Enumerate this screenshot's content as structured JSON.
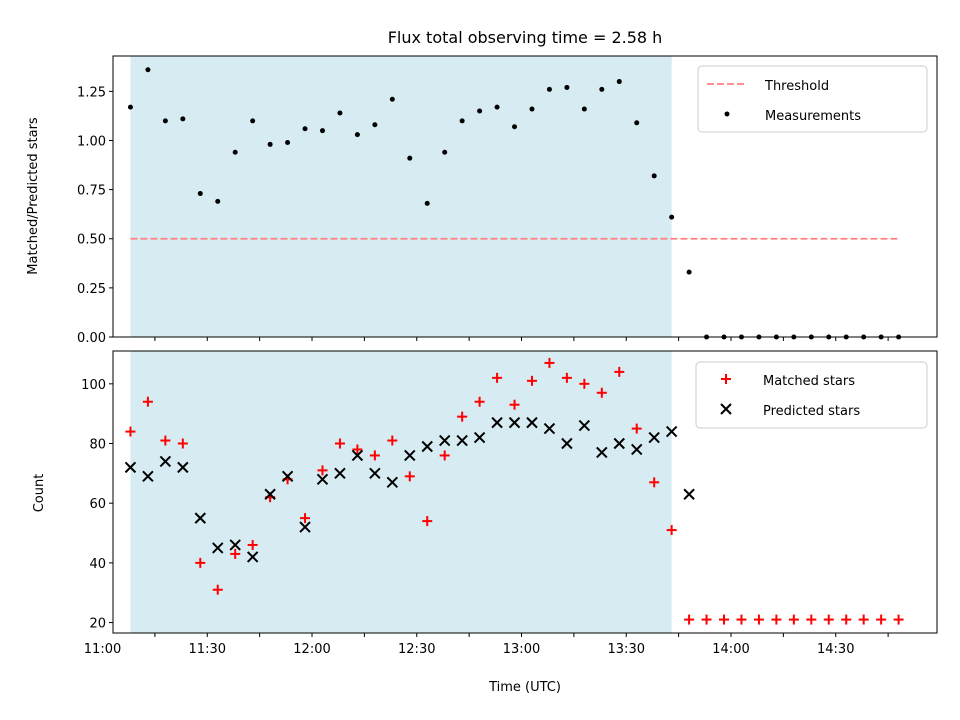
{
  "figure": {
    "title": "Flux total observing time = 2.58 h"
  },
  "colors": {
    "shade": "#add8e6",
    "threshold": "#ff7f7f",
    "measurements": "#000000",
    "matched": "#ff0000",
    "predicted": "#000000"
  },
  "chart_data": [
    {
      "type": "scatter",
      "panel": "top",
      "xlabel": "",
      "ylabel": "Matched/Predicted stars",
      "xlim": [
        "11:03",
        "14:59"
      ],
      "ylim": [
        0,
        1.43
      ],
      "yticks": [
        "0.00",
        "0.25",
        "0.50",
        "0.75",
        "1.00",
        "1.25"
      ],
      "grid": false,
      "legend_position": "top-right",
      "shaded_region": {
        "x_start": "11:08",
        "x_end": "13:43"
      },
      "threshold": {
        "name": "Threshold",
        "y": 0.5,
        "x_start": "11:08",
        "x_end": "14:48"
      },
      "series": [
        {
          "name": "Measurements",
          "marker": "dot",
          "points": [
            [
              "11:08",
              1.17
            ],
            [
              "11:13",
              1.36
            ],
            [
              "11:18",
              1.1
            ],
            [
              "11:23",
              1.11
            ],
            [
              "11:28",
              0.73
            ],
            [
              "11:33",
              0.69
            ],
            [
              "11:38",
              0.94
            ],
            [
              "11:43",
              1.1
            ],
            [
              "11:48",
              0.98
            ],
            [
              "11:53",
              0.99
            ],
            [
              "11:58",
              1.06
            ],
            [
              "12:03",
              1.05
            ],
            [
              "12:08",
              1.14
            ],
            [
              "12:13",
              1.03
            ],
            [
              "12:18",
              1.08
            ],
            [
              "12:23",
              1.21
            ],
            [
              "12:28",
              0.91
            ],
            [
              "12:33",
              0.68
            ],
            [
              "12:38",
              0.94
            ],
            [
              "12:43",
              1.1
            ],
            [
              "12:48",
              1.15
            ],
            [
              "12:53",
              1.17
            ],
            [
              "12:58",
              1.07
            ],
            [
              "13:03",
              1.16
            ],
            [
              "13:08",
              1.26
            ],
            [
              "13:13",
              1.27
            ],
            [
              "13:18",
              1.16
            ],
            [
              "13:23",
              1.26
            ],
            [
              "13:28",
              1.3
            ],
            [
              "13:33",
              1.09
            ],
            [
              "13:38",
              0.82
            ],
            [
              "13:43",
              0.61
            ],
            [
              "13:48",
              0.33
            ],
            [
              "13:53",
              0.0
            ],
            [
              "13:58",
              0.0
            ],
            [
              "14:03",
              0.0
            ],
            [
              "14:08",
              0.0
            ],
            [
              "14:13",
              0.0
            ],
            [
              "14:18",
              0.0
            ],
            [
              "14:23",
              0.0
            ],
            [
              "14:28",
              0.0
            ],
            [
              "14:33",
              0.0
            ],
            [
              "14:38",
              0.0
            ],
            [
              "14:43",
              0.0
            ],
            [
              "14:48",
              0.0
            ]
          ]
        }
      ]
    },
    {
      "type": "scatter",
      "panel": "bottom",
      "xlabel": "Time (UTC)",
      "ylabel": "Count",
      "xlim": [
        "11:03",
        "14:59"
      ],
      "ylim": [
        16.5,
        111
      ],
      "xticks": [
        "11:00",
        "11:30",
        "12:00",
        "12:30",
        "13:00",
        "13:30",
        "14:00",
        "14:30"
      ],
      "yticks": [
        "20",
        "40",
        "60",
        "80",
        "100"
      ],
      "grid": false,
      "legend_position": "top-right",
      "shaded_region": {
        "x_start": "11:08",
        "x_end": "13:43"
      },
      "series": [
        {
          "name": "Matched stars",
          "marker": "plus",
          "points": [
            [
              "11:08",
              84
            ],
            [
              "11:13",
              94
            ],
            [
              "11:18",
              81
            ],
            [
              "11:23",
              80
            ],
            [
              "11:28",
              40
            ],
            [
              "11:33",
              31
            ],
            [
              "11:38",
              43
            ],
            [
              "11:43",
              46
            ],
            [
              "11:48",
              62
            ],
            [
              "11:53",
              68
            ],
            [
              "11:58",
              55
            ],
            [
              "12:03",
              71
            ],
            [
              "12:08",
              80
            ],
            [
              "12:13",
              78
            ],
            [
              "12:18",
              76
            ],
            [
              "12:23",
              81
            ],
            [
              "12:28",
              69
            ],
            [
              "12:33",
              54
            ],
            [
              "12:38",
              76
            ],
            [
              "12:43",
              89
            ],
            [
              "12:48",
              94
            ],
            [
              "12:53",
              102
            ],
            [
              "12:58",
              93
            ],
            [
              "13:03",
              101
            ],
            [
              "13:08",
              107
            ],
            [
              "13:13",
              102
            ],
            [
              "13:18",
              100
            ],
            [
              "13:23",
              97
            ],
            [
              "13:28",
              104
            ],
            [
              "13:33",
              85
            ],
            [
              "13:38",
              67
            ],
            [
              "13:43",
              51
            ],
            [
              "13:48",
              21
            ],
            [
              "13:53",
              21
            ],
            [
              "13:58",
              21
            ],
            [
              "14:03",
              21
            ],
            [
              "14:08",
              21
            ],
            [
              "14:13",
              21
            ],
            [
              "14:18",
              21
            ],
            [
              "14:23",
              21
            ],
            [
              "14:28",
              21
            ],
            [
              "14:33",
              21
            ],
            [
              "14:38",
              21
            ],
            [
              "14:43",
              21
            ],
            [
              "14:48",
              21
            ]
          ]
        },
        {
          "name": "Predicted stars",
          "marker": "x",
          "points": [
            [
              "11:08",
              72
            ],
            [
              "11:13",
              69
            ],
            [
              "11:18",
              74
            ],
            [
              "11:23",
              72
            ],
            [
              "11:28",
              55
            ],
            [
              "11:33",
              45
            ],
            [
              "11:38",
              46
            ],
            [
              "11:43",
              42
            ],
            [
              "11:48",
              63
            ],
            [
              "11:53",
              69
            ],
            [
              "11:58",
              52
            ],
            [
              "12:03",
              68
            ],
            [
              "12:08",
              70
            ],
            [
              "12:13",
              76
            ],
            [
              "12:18",
              70
            ],
            [
              "12:23",
              67
            ],
            [
              "12:28",
              76
            ],
            [
              "12:33",
              79
            ],
            [
              "12:38",
              81
            ],
            [
              "12:43",
              81
            ],
            [
              "12:48",
              82
            ],
            [
              "12:53",
              87
            ],
            [
              "12:58",
              87
            ],
            [
              "13:03",
              87
            ],
            [
              "13:08",
              85
            ],
            [
              "13:13",
              80
            ],
            [
              "13:18",
              86
            ],
            [
              "13:23",
              77
            ],
            [
              "13:28",
              80
            ],
            [
              "13:33",
              78
            ],
            [
              "13:38",
              82
            ],
            [
              "13:43",
              84
            ],
            [
              "13:48",
              63
            ]
          ]
        }
      ]
    }
  ]
}
